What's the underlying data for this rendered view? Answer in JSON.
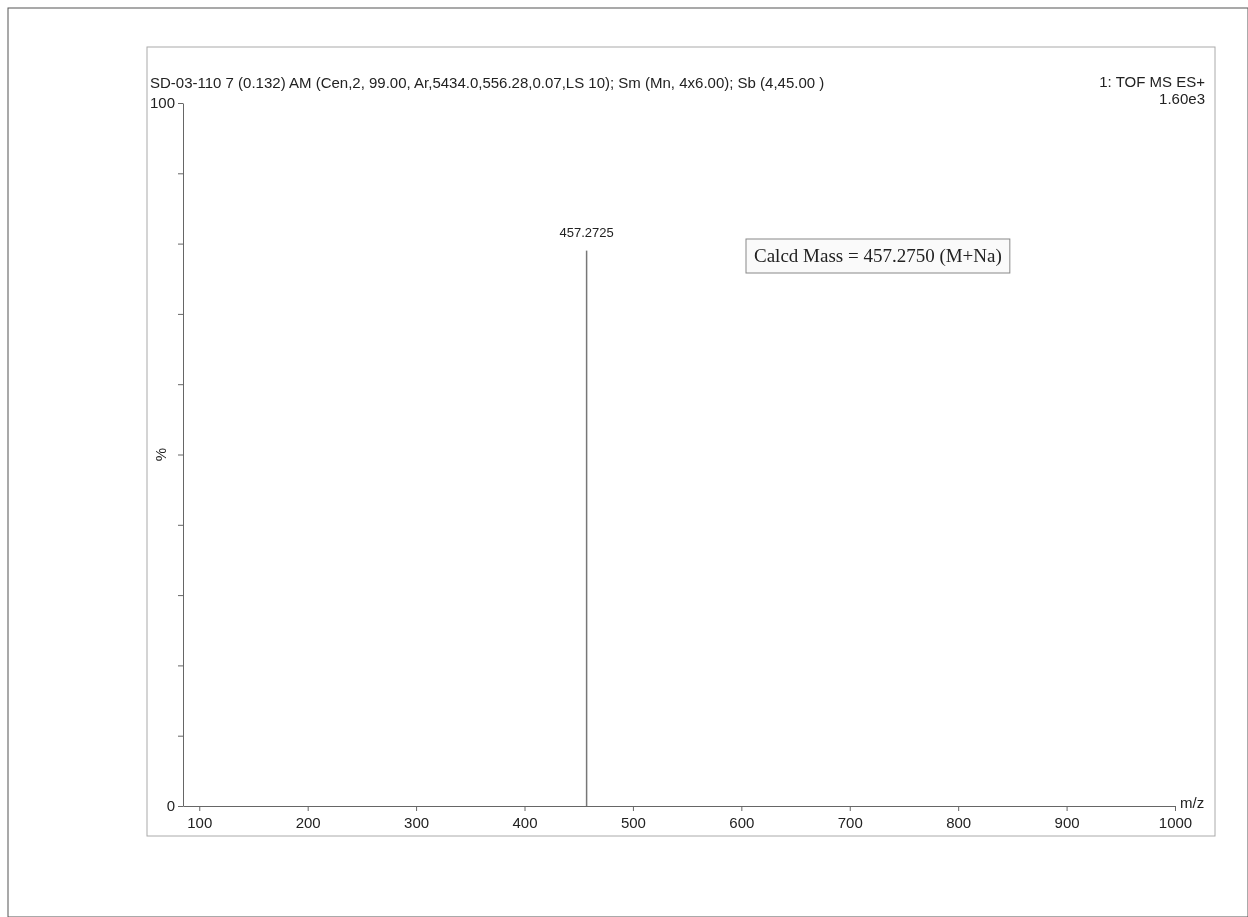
{
  "chart_data": {
    "type": "bar",
    "title": "SD-03-110 7 (0.132) AM (Cen,2, 99.00, Ar,5434.0,556.28,0.07,LS 10); Sm (Mn, 4x6.00); Sb (4,45.00 )",
    "annotations": [
      "1: TOF MS ES+",
      "1.60e3",
      "Calcd Mass = 457.2750 (M+Na)",
      {
        "text": "457.2725",
        "x": 457.2725,
        "y": 79
      }
    ],
    "xlabel": "m/z",
    "ylabel": "%",
    "x": [
      457.2725
    ],
    "values": [
      79
    ],
    "color": "#777777",
    "xlim": [
      85,
      1000
    ],
    "xticks": [
      100,
      200,
      300,
      400,
      500,
      600,
      700,
      800,
      900,
      1000
    ],
    "ylim": [
      0,
      100
    ],
    "yticks": [
      0,
      {
        "value": 10,
        "label": null
      },
      {
        "value": 20,
        "label": null
      },
      {
        "value": 30,
        "label": null
      },
      {
        "value": 40,
        "label": null
      },
      {
        "value": 50,
        "label": null
      },
      {
        "value": 60,
        "label": null
      },
      {
        "value": 70,
        "label": null
      },
      {
        "value": 80,
        "label": null
      },
      {
        "value": 90,
        "label": null
      },
      100
    ]
  }
}
